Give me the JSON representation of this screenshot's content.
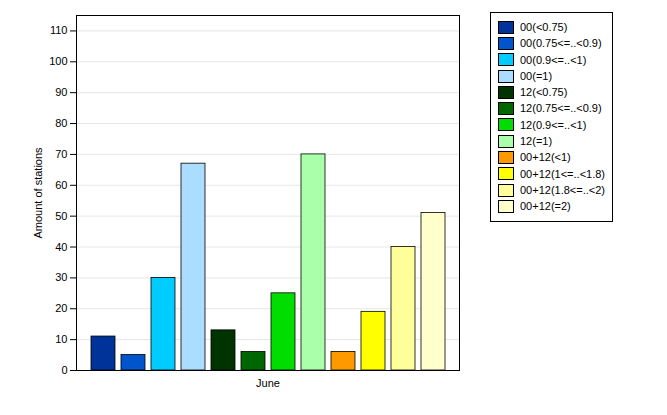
{
  "chart_data": {
    "type": "bar",
    "categories": [
      "June"
    ],
    "series": [
      {
        "name": "00(<0.75)",
        "color": "#003399",
        "values": [
          11
        ]
      },
      {
        "name": "00(0.75<=..<0.9)",
        "color": "#0055cc",
        "values": [
          5
        ]
      },
      {
        "name": "00(0.9<=..<1)",
        "color": "#00ccff",
        "values": [
          30
        ]
      },
      {
        "name": "00(=1)",
        "color": "#aaddff",
        "values": [
          67
        ]
      },
      {
        "name": "12(<0.75)",
        "color": "#003300",
        "values": [
          13
        ]
      },
      {
        "name": "12(0.75<=..<0.9)",
        "color": "#006600",
        "values": [
          6
        ]
      },
      {
        "name": "12(0.9<=..<1)",
        "color": "#00dd00",
        "values": [
          25
        ]
      },
      {
        "name": "12(=1)",
        "color": "#aaffaa",
        "values": [
          70
        ]
      },
      {
        "name": "00+12(<1)",
        "color": "#ff9900",
        "values": [
          6
        ]
      },
      {
        "name": "00+12(1<=..<1.8)",
        "color": "#ffff00",
        "values": [
          19
        ]
      },
      {
        "name": "00+12(1.8<=..<2)",
        "color": "#ffff99",
        "values": [
          40
        ]
      },
      {
        "name": "00+12(=2)",
        "color": "#ffffcc",
        "values": [
          51
        ]
      }
    ],
    "ylabel": "Amount of stations",
    "ylim": [
      0,
      115
    ],
    "yticks": [
      0,
      10,
      20,
      30,
      40,
      50,
      60,
      70,
      80,
      90,
      100,
      110
    ],
    "grid": true,
    "legend": "right"
  }
}
